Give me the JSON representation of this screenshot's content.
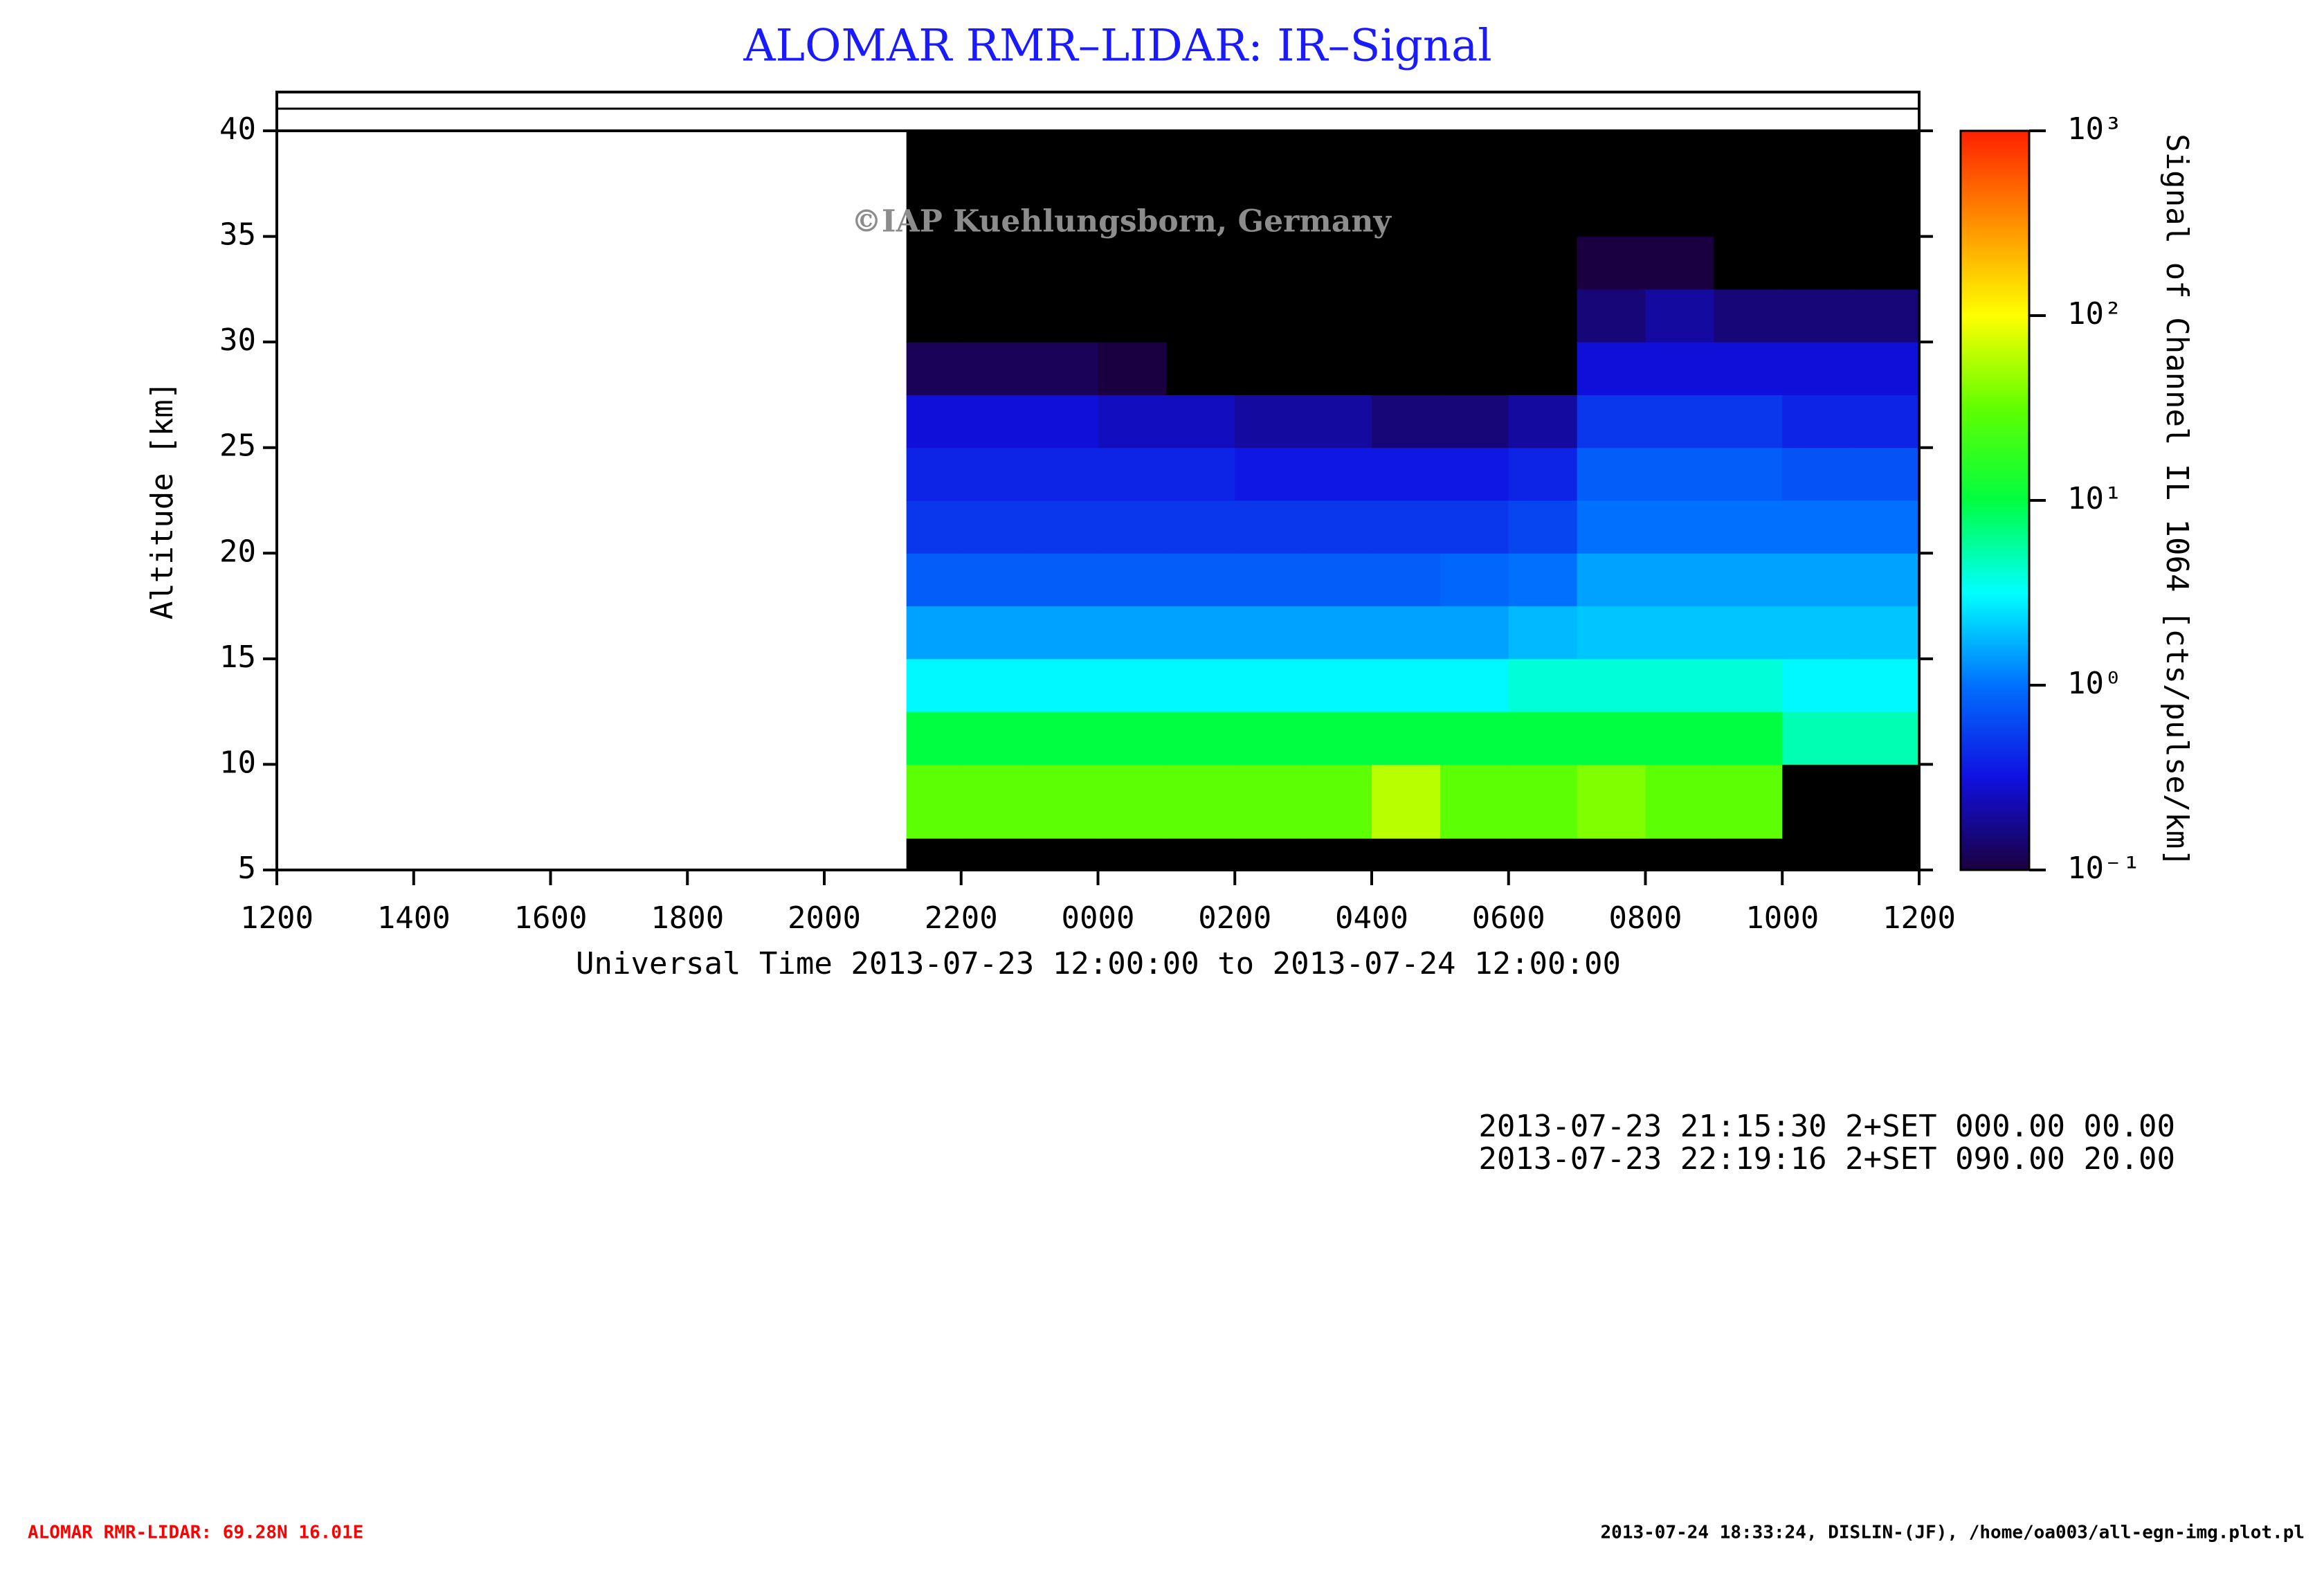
{
  "chart_data": {
    "type": "heatmap",
    "title": "ALOMAR RMR–LIDAR: IR–Signal",
    "xlabel": "Universal Time 2013-07-23 12:00:00 to 2013-07-24 12:00:00",
    "ylabel": "Altitude [km]",
    "colorbar_label": "Signal of Channel IL 1064 [cts/pulse/km]",
    "watermark": "©IAP Kuehlungsborn, Germany",
    "annotations": [
      "2013-07-23 21:15:30 2+SET 000.00 00.00",
      "2013-07-23 22:19:16 2+SET 090.00 20.00"
    ],
    "footer_left": "ALOMAR RMR-LIDAR: 69.28N 16.01E",
    "footer_right": "2013-07-24 18:33:24, DISLIN-(JF), /home/oa003/all-egn-img.plot.pl",
    "xlim": [
      12,
      36
    ],
    "xticks": [
      {
        "value": 12,
        "label": "1200"
      },
      {
        "value": 14,
        "label": "1400"
      },
      {
        "value": 16,
        "label": "1600"
      },
      {
        "value": 18,
        "label": "1800"
      },
      {
        "value": 20,
        "label": "2000"
      },
      {
        "value": 22,
        "label": "2200"
      },
      {
        "value": 24,
        "label": "0000"
      },
      {
        "value": 26,
        "label": "0200"
      },
      {
        "value": 28,
        "label": "0400"
      },
      {
        "value": 30,
        "label": "0600"
      },
      {
        "value": 32,
        "label": "0800"
      },
      {
        "value": 34,
        "label": "1000"
      },
      {
        "value": 36,
        "label": "1200"
      }
    ],
    "ylim": [
      5,
      40
    ],
    "yticks": [
      5,
      10,
      15,
      20,
      25,
      30,
      35,
      40
    ],
    "zlim": [
      0.1,
      1000
    ],
    "zscale": "log",
    "zticks": [
      {
        "value": 0.1,
        "label": "10⁻¹"
      },
      {
        "value": 1,
        "label": "10⁰"
      },
      {
        "value": 10,
        "label": "10¹"
      },
      {
        "value": 100,
        "label": "10²"
      },
      {
        "value": 1000,
        "label": "10³"
      }
    ],
    "colormap": [
      "#1a0040",
      "#1010e0",
      "#0070ff",
      "#00ffff",
      "#00ff40",
      "#60ff00",
      "#ffff00",
      "#ff9000",
      "#ff2000"
    ],
    "under_color": "#000000",
    "x_edges": [
      21.2,
      22,
      23,
      24,
      25,
      26,
      27,
      28,
      29,
      30,
      31,
      32,
      33,
      34,
      35,
      36
    ],
    "y_edges": [
      5,
      6.5,
      10,
      12.5,
      15,
      17.5,
      20,
      22.5,
      25,
      27.5,
      30,
      32.5,
      35,
      40
    ],
    "z": [
      [
        0.05,
        0.05,
        0.05,
        0.05,
        0.05,
        0.05,
        0.05,
        0.05,
        0.05,
        0.05,
        0.05,
        0.05,
        0.05,
        0.05,
        0.05
      ],
      [
        30,
        30,
        30,
        30,
        30,
        30,
        30,
        60,
        30,
        30,
        40,
        30,
        30,
        0.05,
        0.05
      ],
      [
        10,
        10,
        10,
        10,
        10,
        10,
        10,
        10,
        10,
        10,
        10,
        10,
        10,
        5,
        5
      ],
      [
        3,
        3,
        3,
        3,
        3,
        3,
        3,
        3,
        3,
        4,
        4,
        4,
        4,
        3,
        3
      ],
      [
        1.5,
        1.5,
        1.5,
        1.5,
        1.5,
        1.5,
        1.5,
        1.5,
        1.5,
        1.8,
        2,
        2,
        2,
        2,
        2
      ],
      [
        0.8,
        0.8,
        0.8,
        0.8,
        0.8,
        0.8,
        0.8,
        0.8,
        0.9,
        1,
        1.5,
        1.5,
        1.5,
        1.5,
        1.5
      ],
      [
        0.5,
        0.5,
        0.5,
        0.5,
        0.5,
        0.5,
        0.5,
        0.5,
        0.5,
        0.6,
        1,
        1,
        1,
        1,
        1
      ],
      [
        0.4,
        0.4,
        0.4,
        0.4,
        0.4,
        0.35,
        0.35,
        0.35,
        0.35,
        0.4,
        0.8,
        0.8,
        0.8,
        0.7,
        0.7
      ],
      [
        0.3,
        0.3,
        0.3,
        0.25,
        0.25,
        0.2,
        0.2,
        0.15,
        0.15,
        0.2,
        0.5,
        0.5,
        0.5,
        0.4,
        0.4
      ],
      [
        0.12,
        0.12,
        0.12,
        0.1,
        0.05,
        0.05,
        0.05,
        0.05,
        0.05,
        0.05,
        0.3,
        0.3,
        0.3,
        0.3,
        0.3
      ],
      [
        0.05,
        0.05,
        0.05,
        0.05,
        0.05,
        0.05,
        0.05,
        0.05,
        0.05,
        0.05,
        0.15,
        0.2,
        0.15,
        0.15,
        0.15
      ],
      [
        0.05,
        0.05,
        0.05,
        0.05,
        0.05,
        0.05,
        0.05,
        0.05,
        0.05,
        0.05,
        0.1,
        0.1,
        0.05,
        0.05,
        0.05
      ],
      [
        0.05,
        0.05,
        0.05,
        0.05,
        0.05,
        0.05,
        0.05,
        0.05,
        0.05,
        0.05,
        0.05,
        0.05,
        0.05,
        0.05,
        0.05
      ]
    ]
  }
}
